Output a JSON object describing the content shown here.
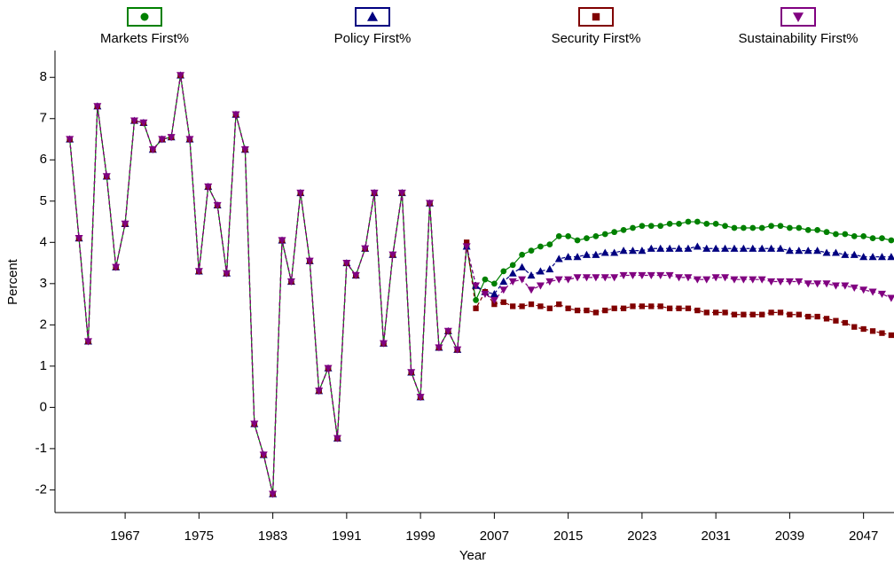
{
  "chart_data": {
    "type": "line",
    "x_label": "Year",
    "y_label": "Percent",
    "x": [
      1961,
      1962,
      1963,
      1964,
      1965,
      1966,
      1967,
      1968,
      1969,
      1970,
      1971,
      1972,
      1973,
      1974,
      1975,
      1976,
      1977,
      1978,
      1979,
      1980,
      1981,
      1982,
      1983,
      1984,
      1985,
      1986,
      1987,
      1988,
      1989,
      1990,
      1991,
      1992,
      1993,
      1994,
      1995,
      1996,
      1997,
      1998,
      1999,
      2000,
      2001,
      2002,
      2003,
      2004,
      2005,
      2006,
      2007,
      2008,
      2009,
      2010,
      2011,
      2012,
      2013,
      2014,
      2015,
      2016,
      2017,
      2018,
      2019,
      2020,
      2021,
      2022,
      2023,
      2024,
      2025,
      2026,
      2027,
      2028,
      2029,
      2030,
      2031,
      2032,
      2033,
      2034,
      2035,
      2036,
      2037,
      2038,
      2039,
      2040,
      2041,
      2042,
      2043,
      2044,
      2045,
      2046,
      2047,
      2048,
      2049,
      2050
    ],
    "xlim": [
      1959.4,
      2050.3
    ],
    "xticks": [
      1967,
      1975,
      1983,
      1991,
      1999,
      2007,
      2015,
      2023,
      2031,
      2039,
      2047
    ],
    "ylim": [
      -2.55,
      8.65
    ],
    "yticks": [
      -2,
      -1,
      0,
      1,
      2,
      3,
      4,
      5,
      6,
      7,
      8
    ],
    "series": [
      {
        "name": "Markets First%",
        "color": "#008000",
        "marker": "circle",
        "values": [
          6.5,
          4.1,
          1.6,
          7.3,
          5.6,
          3.4,
          4.45,
          6.95,
          6.9,
          6.25,
          6.5,
          6.55,
          8.05,
          6.5,
          3.3,
          5.35,
          4.9,
          3.25,
          7.1,
          6.25,
          -0.4,
          -1.15,
          -2.1,
          4.05,
          3.05,
          5.2,
          3.55,
          0.4,
          0.95,
          -0.75,
          3.5,
          3.2,
          3.85,
          5.2,
          1.55,
          3.7,
          5.2,
          0.85,
          0.25,
          4.95,
          1.45,
          1.85,
          1.4,
          3.9,
          2.6,
          3.1,
          3.0,
          3.3,
          3.45,
          3.7,
          3.8,
          3.9,
          3.95,
          4.15,
          4.15,
          4.05,
          4.1,
          4.15,
          4.2,
          4.25,
          4.3,
          4.35,
          4.4,
          4.4,
          4.4,
          4.45,
          4.45,
          4.5,
          4.5,
          4.45,
          4.45,
          4.4,
          4.35,
          4.35,
          4.35,
          4.35,
          4.4,
          4.4,
          4.35,
          4.35,
          4.3,
          4.3,
          4.25,
          4.2,
          4.2,
          4.15,
          4.15,
          4.1,
          4.1,
          4.05
        ]
      },
      {
        "name": "Policy First%",
        "color": "#000080",
        "marker": "triangle-up",
        "values": [
          6.5,
          4.1,
          1.6,
          7.3,
          5.6,
          3.4,
          4.45,
          6.95,
          6.9,
          6.25,
          6.5,
          6.55,
          8.05,
          6.5,
          3.3,
          5.35,
          4.9,
          3.25,
          7.1,
          6.25,
          -0.4,
          -1.15,
          -2.1,
          4.05,
          3.05,
          5.2,
          3.55,
          0.4,
          0.95,
          -0.75,
          3.5,
          3.2,
          3.85,
          5.2,
          1.55,
          3.7,
          5.2,
          0.85,
          0.25,
          4.95,
          1.45,
          1.85,
          1.4,
          3.9,
          2.95,
          2.8,
          2.75,
          3.05,
          3.25,
          3.4,
          3.2,
          3.3,
          3.35,
          3.6,
          3.65,
          3.65,
          3.7,
          3.7,
          3.75,
          3.75,
          3.8,
          3.8,
          3.8,
          3.85,
          3.85,
          3.85,
          3.85,
          3.85,
          3.9,
          3.85,
          3.85,
          3.85,
          3.85,
          3.85,
          3.85,
          3.85,
          3.85,
          3.85,
          3.8,
          3.8,
          3.8,
          3.8,
          3.75,
          3.75,
          3.7,
          3.7,
          3.65,
          3.65,
          3.65,
          3.65
        ]
      },
      {
        "name": "Security First%",
        "color": "#800000",
        "marker": "square",
        "values": [
          6.5,
          4.1,
          1.6,
          7.3,
          5.6,
          3.4,
          4.45,
          6.95,
          6.9,
          6.25,
          6.5,
          6.55,
          8.05,
          6.5,
          3.3,
          5.35,
          4.9,
          3.25,
          7.1,
          6.25,
          -0.4,
          -1.15,
          -2.1,
          4.05,
          3.05,
          5.2,
          3.55,
          0.4,
          0.95,
          -0.75,
          3.5,
          3.2,
          3.85,
          5.2,
          1.55,
          3.7,
          5.2,
          0.85,
          0.25,
          4.95,
          1.45,
          1.85,
          1.4,
          4.0,
          2.4,
          2.8,
          2.5,
          2.55,
          2.45,
          2.45,
          2.5,
          2.45,
          2.4,
          2.5,
          2.4,
          2.35,
          2.35,
          2.3,
          2.35,
          2.4,
          2.4,
          2.45,
          2.45,
          2.45,
          2.45,
          2.4,
          2.4,
          2.4,
          2.35,
          2.3,
          2.3,
          2.3,
          2.25,
          2.25,
          2.25,
          2.25,
          2.3,
          2.3,
          2.25,
          2.25,
          2.2,
          2.2,
          2.15,
          2.1,
          2.05,
          1.95,
          1.9,
          1.85,
          1.8,
          1.75
        ]
      },
      {
        "name": "Sustainability First%",
        "color": "#800080",
        "marker": "triangle-down",
        "values": [
          6.5,
          4.1,
          1.6,
          7.3,
          5.6,
          3.4,
          4.45,
          6.95,
          6.9,
          6.25,
          6.5,
          6.55,
          8.05,
          6.5,
          3.3,
          5.35,
          4.9,
          3.25,
          7.1,
          6.25,
          -0.4,
          -1.15,
          -2.1,
          4.05,
          3.05,
          5.2,
          3.55,
          0.4,
          0.95,
          -0.75,
          3.5,
          3.2,
          3.85,
          5.2,
          1.55,
          3.7,
          5.2,
          0.85,
          0.25,
          4.95,
          1.45,
          1.85,
          1.4,
          3.9,
          2.95,
          2.75,
          2.6,
          2.85,
          3.05,
          3.1,
          2.85,
          2.95,
          3.05,
          3.1,
          3.1,
          3.15,
          3.15,
          3.15,
          3.15,
          3.15,
          3.2,
          3.2,
          3.2,
          3.2,
          3.2,
          3.2,
          3.15,
          3.15,
          3.1,
          3.1,
          3.15,
          3.15,
          3.1,
          3.1,
          3.1,
          3.1,
          3.05,
          3.05,
          3.05,
          3.05,
          3.0,
          3.0,
          3.0,
          2.95,
          2.95,
          2.9,
          2.85,
          2.8,
          2.75,
          2.65
        ]
      }
    ]
  }
}
